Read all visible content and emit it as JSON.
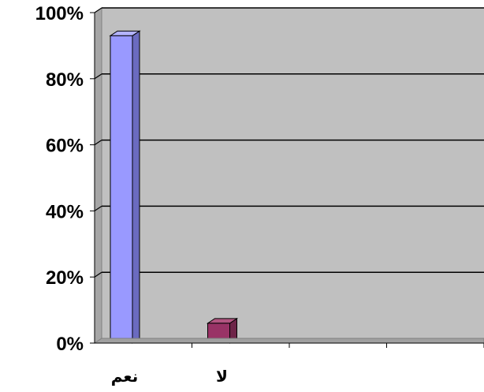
{
  "chart_data": {
    "type": "bar",
    "title": "",
    "xlabel": "",
    "ylabel": "",
    "categories": [
      "نعم",
      "لا",
      "",
      ""
    ],
    "values": [
      93,
      6,
      null,
      null
    ],
    "ylim": [
      0,
      100
    ],
    "yticks": [
      "0%",
      "20%",
      "40%",
      "60%",
      "80%",
      "100%"
    ],
    "grid": true,
    "legend": "none",
    "style": "3d-column"
  },
  "colors": {
    "plot_background": "#c0c0c0",
    "gridline": "#000000",
    "bar_palette": [
      {
        "front": "#9999ff",
        "side": "#6b6bc0",
        "top": "#b3b3ff"
      },
      {
        "front": "#993366",
        "side": "#6e2448",
        "top": "#b25580"
      }
    ]
  }
}
